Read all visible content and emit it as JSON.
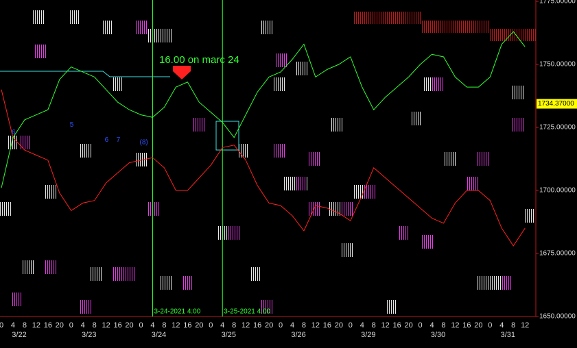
{
  "chart_data": {
    "type": "line",
    "ylim": [
      1650,
      1775
    ],
    "yticks": [
      {
        "value": 1650,
        "label": "1650.00000"
      },
      {
        "value": 1675,
        "label": "1675.00000"
      },
      {
        "value": 1700,
        "label": "1700.00000"
      },
      {
        "value": 1725,
        "label": "1725.00000"
      },
      {
        "value": 1750,
        "label": "1750.00000"
      },
      {
        "value": 1775,
        "label": "1775.00000"
      }
    ],
    "days": [
      {
        "label": "3/22",
        "hours": [
          0,
          4,
          8,
          12,
          16,
          20
        ]
      },
      {
        "label": "3/23",
        "hours": [
          0,
          4,
          8,
          12,
          16,
          20
        ]
      },
      {
        "label": "3/24",
        "hours": [
          0,
          4,
          8,
          12,
          16,
          20
        ]
      },
      {
        "label": "3/25",
        "hours": [
          0,
          4,
          8,
          12,
          16,
          20
        ]
      },
      {
        "label": "3/26",
        "hours": [
          0,
          4,
          8,
          12,
          16,
          20
        ]
      },
      {
        "label": "3/29",
        "hours": [
          0,
          4,
          8,
          12,
          16,
          20
        ]
      },
      {
        "label": "3/30",
        "hours": [
          0,
          4,
          8,
          12,
          16,
          20
        ]
      },
      {
        "label": "3/31",
        "hours": [
          0,
          4,
          8,
          12
        ]
      }
    ],
    "series": [
      {
        "color": "#ff2020",
        "values": [
          1740,
          1721,
          1716,
          1714,
          1712,
          1699,
          1692,
          1695,
          1696,
          1703,
          1707,
          1711,
          1712,
          1713,
          1709,
          1700,
          1700,
          1705,
          1710,
          1717,
          1718,
          1712,
          1702,
          1695,
          1694,
          1690,
          1684,
          1694,
          1693,
          1691,
          1688,
          1698,
          1709,
          1705,
          1701,
          1697,
          1693,
          1689,
          1687,
          1695,
          1700,
          1700,
          1696,
          1685,
          1678,
          1685
        ]
      },
      {
        "color": "#30ff30",
        "values": [
          1701,
          1721,
          1728,
          1730,
          1732,
          1744,
          1749,
          1747,
          1745,
          1740,
          1735,
          1732,
          1730,
          1729,
          1733,
          1741,
          1743,
          1735,
          1731,
          1727,
          1721,
          1730,
          1739,
          1745,
          1747,
          1752,
          1758,
          1745,
          1748,
          1750,
          1753,
          1741,
          1732,
          1737,
          1741,
          1745,
          1750,
          1754,
          1753,
          1745,
          1741,
          1741,
          1745,
          1758,
          1763,
          1757
        ]
      }
    ],
    "annotation": "16.00 on marc 24",
    "vlines": [
      {
        "label": "3-24-2021 4:00",
        "slot": 13
      },
      {
        "label": "3-25-2021 4:00",
        "slot": 19
      }
    ],
    "current_price": {
      "value": 1734.37,
      "label": "1734.37000"
    },
    "wave_labels": [
      {
        "label": "6",
        "slot": 1,
        "value": 1723
      },
      {
        "label": "5",
        "slot": 6,
        "value": 1726
      },
      {
        "label": "6",
        "slot": 9,
        "value": 1720
      },
      {
        "label": "7",
        "slot": 10,
        "value": 1720
      },
      {
        "label": "(8)",
        "slot": 12,
        "value": 1719
      }
    ]
  }
}
